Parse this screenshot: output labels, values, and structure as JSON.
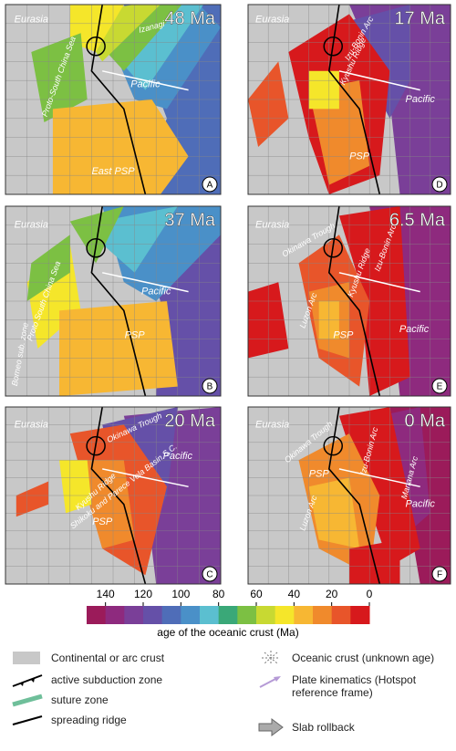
{
  "panels": [
    {
      "age": "48 Ma",
      "letter": "A",
      "labels": [
        "Eurasia",
        "Izanagi",
        "Pacific",
        "Proto-South China Sea",
        "East PSP"
      ]
    },
    {
      "age": "37 Ma",
      "letter": "B",
      "labels": [
        "Eurasia",
        "Pacific",
        "Proto South China Sea",
        "PSP",
        "Borneo sub. zone"
      ]
    },
    {
      "age": "20 Ma",
      "letter": "C",
      "labels": [
        "Eurasia",
        "Okinawa Trough",
        "Pacific",
        "Shikoku and Parece Vela Basin S.C.",
        "Kyushu Ridge",
        "PSP"
      ]
    },
    {
      "age": "17 Ma",
      "letter": "D",
      "labels": [
        "Eurasia",
        "Izu-Bonin Arc",
        "Pacific",
        "Kyushu Ridge",
        "PSP"
      ]
    },
    {
      "age": "6.5 Ma",
      "letter": "E",
      "labels": [
        "Eurasia",
        "Okinawa Trough",
        "Izu-Bonin Arc",
        "Kyushu Ridge",
        "Pacific",
        "Luzon Arc",
        "PSP"
      ]
    },
    {
      "age": "0 Ma",
      "letter": "F",
      "labels": [
        "Eurasia",
        "Okinawa Trough",
        "Izu-Bonin Arc",
        "Mariana Arc",
        "PSP",
        "Pacific",
        "Luzon Arc"
      ]
    }
  ],
  "colorbar": {
    "label": "age of the oceanic crust (Ma)",
    "range": [
      150,
      0
    ],
    "ticks": [
      140,
      120,
      100,
      80,
      60,
      40,
      20,
      0
    ],
    "colors": [
      "#9b1b5a",
      "#8e2a7e",
      "#7a3f98",
      "#6550a8",
      "#4f6db8",
      "#4a90c8",
      "#5bbfd0",
      "#3aa878",
      "#7cc043",
      "#c8d932",
      "#f5e62a",
      "#f7b733",
      "#f08a2c",
      "#e8552a",
      "#d7191c"
    ]
  },
  "legend": {
    "items": [
      "Continental or arc crust",
      "active subduction zone",
      "suture zone",
      "spreading ridge",
      "Oceanic crust (unknown age)",
      "Plate kinematics (Hotspot reference frame)",
      "Slab rollback"
    ]
  }
}
